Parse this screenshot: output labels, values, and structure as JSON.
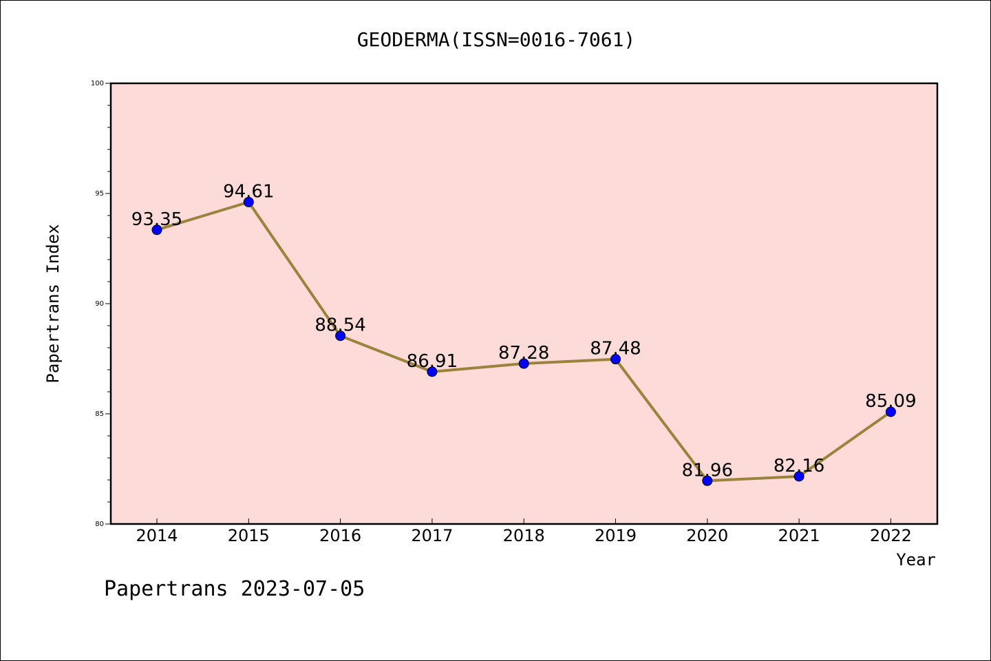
{
  "chart_data": {
    "type": "line",
    "title": "GEODERMA(ISSN=0016-7061)",
    "xlabel": "Year",
    "ylabel": "Papertrans Index",
    "x": [
      "2014",
      "2015",
      "2016",
      "2017",
      "2018",
      "2019",
      "2020",
      "2021",
      "2022"
    ],
    "series": [
      {
        "values": [
          93.35,
          94.61,
          88.54,
          86.91,
          87.28,
          87.48,
          81.96,
          82.16,
          85.09
        ]
      }
    ],
    "data_labels": [
      "93.35",
      "94.61",
      "88.54",
      "86.91",
      "87.28",
      "87.48",
      "81.96",
      "82.16",
      "85.09"
    ],
    "ylim": [
      80,
      100
    ],
    "y_major_ticks": [
      80,
      85,
      90,
      95,
      100
    ],
    "y_minor_tick_step": 1,
    "grid": false,
    "legend": "none",
    "colors": {
      "plot_background": "#fddbd8",
      "line": "#9b833d",
      "marker": "#0000ff",
      "axis": "#000000"
    }
  },
  "footer": {
    "text": "Papertrans 2023-07-05"
  }
}
